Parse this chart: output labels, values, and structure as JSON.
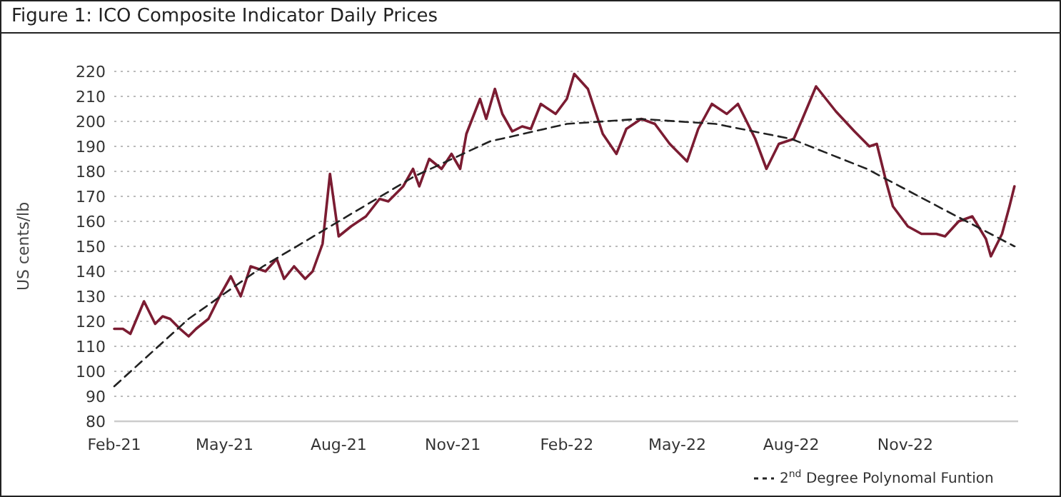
{
  "chart_data": {
    "type": "line",
    "title": "Figure 1: ICO Composite Indicator Daily Prices",
    "ylabel": "US cents/lb",
    "x": [
      "2021-02-01",
      "2021-02-08",
      "2021-02-14",
      "2021-02-25",
      "2021-03-06",
      "2021-03-12",
      "2021-03-18",
      "2021-03-26",
      "2021-04-02",
      "2021-04-08",
      "2021-04-18",
      "2021-04-27",
      "2021-05-06",
      "2021-05-14",
      "2021-05-22",
      "2021-06-03",
      "2021-06-12",
      "2021-06-18",
      "2021-06-26",
      "2021-07-05",
      "2021-07-11",
      "2021-07-19",
      "2021-07-25",
      "2021-08-01",
      "2021-08-11",
      "2021-08-23",
      "2021-09-03",
      "2021-09-10",
      "2021-09-22",
      "2021-09-30",
      "2021-10-05",
      "2021-10-13",
      "2021-10-23",
      "2021-10-31",
      "2021-11-07",
      "2021-11-12",
      "2021-11-23",
      "2021-11-28",
      "2021-12-05",
      "2021-12-11",
      "2021-12-19",
      "2021-12-27",
      "2022-01-03",
      "2022-01-11",
      "2022-01-23",
      "2022-02-01",
      "2022-02-07",
      "2022-02-18",
      "2022-03-02",
      "2022-03-13",
      "2022-03-21",
      "2022-04-02",
      "2022-04-13",
      "2022-04-25",
      "2022-05-09",
      "2022-05-18",
      "2022-05-29",
      "2022-06-10",
      "2022-06-19",
      "2022-07-03",
      "2022-07-12",
      "2022-07-22",
      "2022-08-03",
      "2022-08-10",
      "2022-08-21",
      "2022-09-06",
      "2022-09-21",
      "2022-10-03",
      "2022-10-09",
      "2022-10-17",
      "2022-10-22",
      "2022-11-03",
      "2022-11-14",
      "2022-11-26",
      "2022-12-03",
      "2022-12-14",
      "2022-12-25",
      "2023-01-05",
      "2023-01-09",
      "2023-01-18",
      "2023-01-24",
      "2023-01-28"
    ],
    "series": [
      {
        "color": "#7b1c32",
        "values": [
          117,
          117,
          115,
          128,
          119,
          122,
          121,
          117,
          114,
          117,
          121,
          130,
          138,
          130,
          142,
          140,
          145,
          137,
          142,
          137,
          140,
          151,
          179,
          154,
          158,
          162,
          169,
          168,
          174,
          181,
          174,
          185,
          181,
          187,
          181,
          195,
          209,
          201,
          213,
          203,
          196,
          198,
          197,
          207,
          203,
          209,
          219,
          213,
          195,
          187,
          197,
          201,
          199,
          191,
          184,
          197,
          207,
          203,
          207,
          193,
          181,
          191,
          193,
          201,
          214,
          204,
          196,
          190,
          191,
          175,
          166,
          158,
          155,
          155,
          154,
          160,
          162,
          153,
          146,
          155,
          166,
          174
        ]
      },
      {
        "name": "2$^{nd}$ Degree Polynomal Funtion",
        "color": "#222222",
        "line_style": "dashed",
        "x": [
          "2021-02-01",
          "2021-04-02",
          "2021-06-01",
          "2021-08-01",
          "2021-10-01",
          "2021-12-01",
          "2022-02-01",
          "2022-04-01",
          "2022-06-01",
          "2022-08-01",
          "2022-10-01",
          "2022-12-01",
          "2023-01-28"
        ],
        "values": [
          94,
          121,
          142,
          160,
          178,
          192,
          199,
          201,
          199,
          193,
          181,
          165,
          150
        ]
      }
    ],
    "xlim": [
      "2021-02-01",
      "2023-01-31"
    ],
    "xticks": [
      {
        "value": "2021-02-01",
        "label": "Feb-21"
      },
      {
        "value": "2021-05-01",
        "label": "May-21"
      },
      {
        "value": "2021-08-01",
        "label": "Aug-21"
      },
      {
        "value": "2021-11-01",
        "label": "Nov-21"
      },
      {
        "value": "2022-02-01",
        "label": "Feb-22"
      },
      {
        "value": "2022-05-01",
        "label": "May-22"
      },
      {
        "value": "2022-08-01",
        "label": "Aug-22"
      },
      {
        "value": "2022-11-01",
        "label": "Nov-22"
      }
    ],
    "ylim": [
      80,
      220
    ],
    "yticks": [
      80,
      90,
      100,
      110,
      120,
      130,
      140,
      150,
      160,
      170,
      180,
      190,
      200,
      210,
      220
    ],
    "grid": "y",
    "legend": "bottom right",
    "line_style": "solid",
    "marker": "none"
  }
}
